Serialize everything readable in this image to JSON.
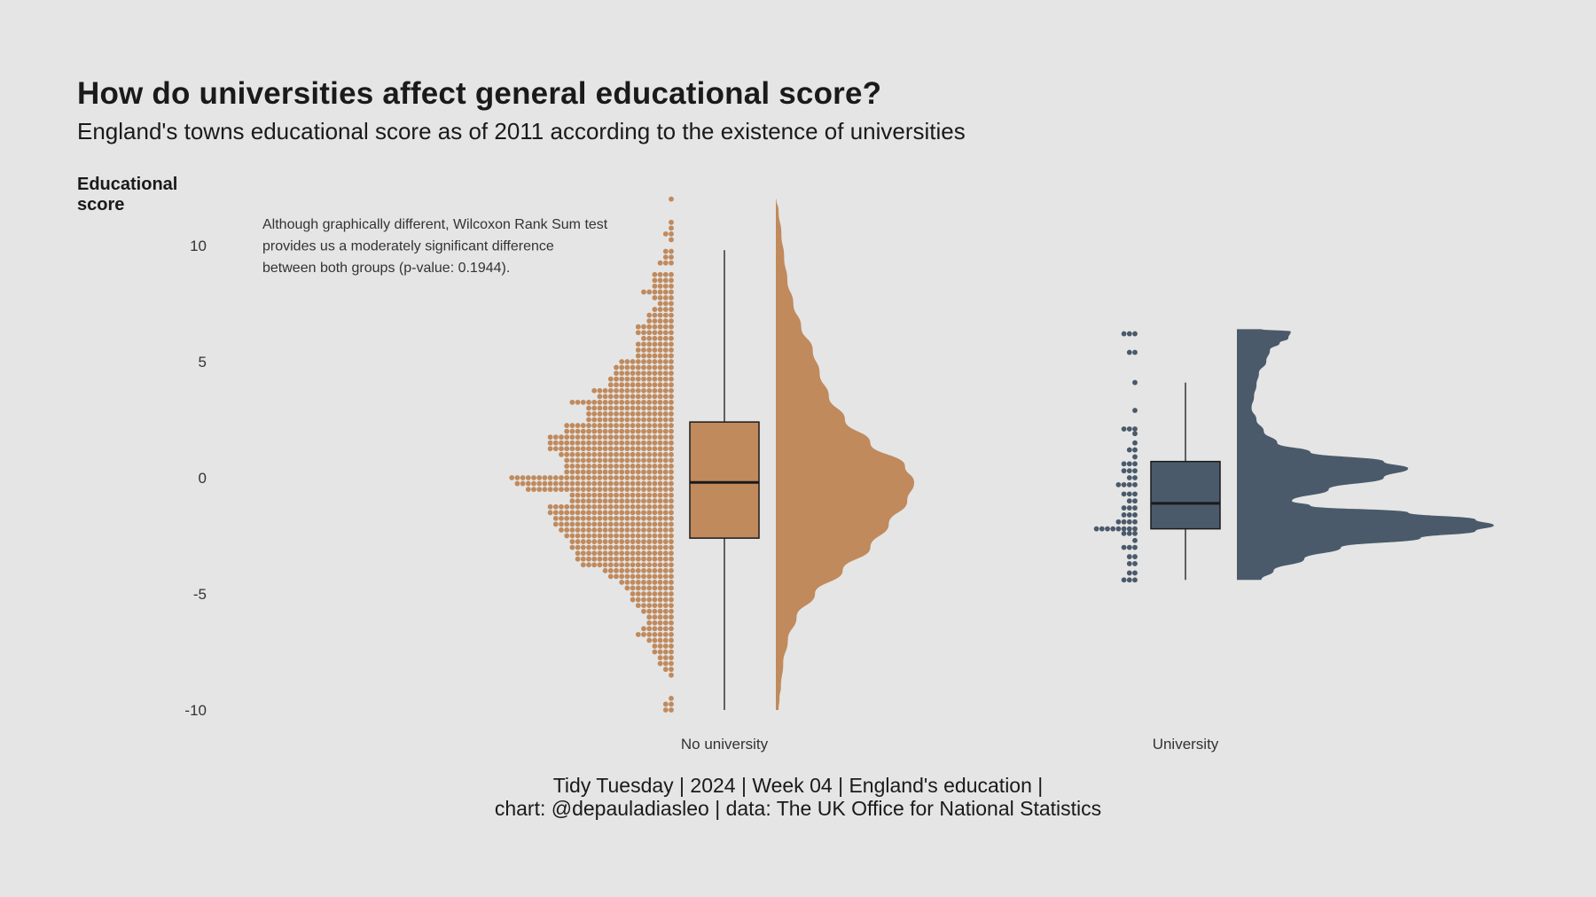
{
  "title": "How do universities affect general educational score?",
  "subtitle": "England's towns educational score as of 2011 according to the existence of universities",
  "caption_line1": "Tidy Tuesday | 2024 | Week 04 | England's education |",
  "caption_line2": "chart: @depauladiasleo | data: The UK Office for National Statistics",
  "chart_data": {
    "type": "raincloud",
    "ylabel": "Educational score",
    "ylim": [
      -10,
      12
    ],
    "yticks": [
      -10,
      -5,
      0,
      5,
      10
    ],
    "grid": false,
    "annotation": [
      "Although graphically different, Wilcoxon Rank Sum test",
      "provides us a moderately significant difference",
      "between both groups (p-value: 0.1944)."
    ],
    "categories": [
      "No university",
      "University"
    ],
    "series": [
      {
        "name": "No university",
        "color": "#c08a5d",
        "box": {
          "whisker_low": -10,
          "q1": -2.6,
          "median": -0.2,
          "q3": 2.4,
          "whisker_high": 9.8
        },
        "density": [
          [
            -10,
            0.6
          ],
          [
            -9.5,
            0.8
          ],
          [
            -9,
            1.1
          ],
          [
            -8,
            1.6
          ],
          [
            -7,
            2.6
          ],
          [
            -6,
            4.5
          ],
          [
            -5,
            8.5
          ],
          [
            -4,
            14.5
          ],
          [
            -3,
            20.5
          ],
          [
            -2,
            24.5
          ],
          [
            -1,
            28.5
          ],
          [
            -0.2,
            30
          ],
          [
            0.5,
            28
          ],
          [
            1.5,
            20.5
          ],
          [
            2.5,
            15
          ],
          [
            3.5,
            11.5
          ],
          [
            4.5,
            9.5
          ],
          [
            5.5,
            8
          ],
          [
            6.5,
            5.5
          ],
          [
            7.5,
            3.8
          ],
          [
            8.5,
            2.5
          ],
          [
            9.5,
            1.8
          ],
          [
            10.5,
            1.2
          ],
          [
            11.5,
            0.6
          ],
          [
            12,
            0.1
          ]
        ],
        "dot_counts": [
          [
            -10,
            2
          ],
          [
            -9.75,
            2
          ],
          [
            -9.5,
            1
          ],
          [
            -9,
            0
          ],
          [
            -8.5,
            1
          ],
          [
            -8.25,
            2
          ],
          [
            -8,
            3
          ],
          [
            -7.75,
            3
          ],
          [
            -7.5,
            4
          ],
          [
            -7.25,
            4
          ],
          [
            -7,
            5
          ],
          [
            -6.75,
            7
          ],
          [
            -6.5,
            6
          ],
          [
            -6.25,
            5
          ],
          [
            -6,
            5
          ],
          [
            -5.75,
            6
          ],
          [
            -5.5,
            7
          ],
          [
            -5.25,
            8
          ],
          [
            -5,
            8
          ],
          [
            -4.75,
            9
          ],
          [
            -4.5,
            10
          ],
          [
            -4.25,
            12
          ],
          [
            -4,
            13
          ],
          [
            -3.75,
            17
          ],
          [
            -3.5,
            18
          ],
          [
            -3.25,
            18
          ],
          [
            -3,
            19
          ],
          [
            -2.75,
            19
          ],
          [
            -2.5,
            20
          ],
          [
            -2.25,
            21
          ],
          [
            -2,
            22
          ],
          [
            -1.75,
            22
          ],
          [
            -1.5,
            23
          ],
          [
            -1.25,
            23
          ],
          [
            -1,
            19
          ],
          [
            -0.75,
            19
          ],
          [
            -0.5,
            27
          ],
          [
            -0.25,
            29
          ],
          [
            0,
            30
          ],
          [
            0.25,
            20
          ],
          [
            0.5,
            20
          ],
          [
            0.75,
            20
          ],
          [
            1,
            21
          ],
          [
            1.25,
            23
          ],
          [
            1.5,
            23
          ],
          [
            1.75,
            23
          ],
          [
            2,
            20
          ],
          [
            2.25,
            20
          ],
          [
            2.5,
            16
          ],
          [
            2.75,
            16
          ],
          [
            3,
            16
          ],
          [
            3.25,
            19
          ],
          [
            3.5,
            14
          ],
          [
            3.75,
            15
          ],
          [
            4,
            12
          ],
          [
            4.25,
            12
          ],
          [
            4.5,
            11
          ],
          [
            4.75,
            11
          ],
          [
            5,
            10
          ],
          [
            5.25,
            7
          ],
          [
            5.5,
            7
          ],
          [
            5.75,
            7
          ],
          [
            6,
            6
          ],
          [
            6.25,
            7
          ],
          [
            6.5,
            7
          ],
          [
            6.75,
            5
          ],
          [
            7,
            5
          ],
          [
            7.25,
            4
          ],
          [
            7.5,
            3
          ],
          [
            7.75,
            4
          ],
          [
            8,
            6
          ],
          [
            8.25,
            4
          ],
          [
            8.5,
            4
          ],
          [
            8.75,
            4
          ],
          [
            9,
            0
          ],
          [
            9.25,
            3
          ],
          [
            9.5,
            2
          ],
          [
            9.75,
            2
          ],
          [
            10,
            0
          ],
          [
            10.25,
            1
          ],
          [
            10.5,
            2
          ],
          [
            10.75,
            1
          ],
          [
            11,
            1
          ],
          [
            11.5,
            0
          ],
          [
            12,
            1
          ]
        ]
      },
      {
        "name": "University",
        "color": "#4a5a6a",
        "box": {
          "whisker_low": -4.4,
          "q1": -2.2,
          "median": -1.1,
          "q3": 0.7,
          "whisker_high": 4.1
        },
        "density": [
          [
            -4.4,
            20
          ],
          [
            -4,
            30
          ],
          [
            -3.5,
            55
          ],
          [
            -3,
            85
          ],
          [
            -2.6,
            150
          ],
          [
            -2.3,
            195
          ],
          [
            -2.05,
            210
          ],
          [
            -1.8,
            195
          ],
          [
            -1.5,
            140
          ],
          [
            -1.2,
            60
          ],
          [
            -1,
            45
          ],
          [
            -0.5,
            75
          ],
          [
            0,
            120
          ],
          [
            0.4,
            140
          ],
          [
            0.7,
            120
          ],
          [
            1.1,
            60
          ],
          [
            1.5,
            33
          ],
          [
            2,
            22
          ],
          [
            2.5,
            16
          ],
          [
            3,
            12
          ],
          [
            3.5,
            14
          ],
          [
            4,
            16
          ],
          [
            4.5,
            18
          ],
          [
            5,
            24
          ],
          [
            5.5,
            27
          ],
          [
            5.8,
            35
          ],
          [
            6,
            42
          ],
          [
            6.3,
            44
          ],
          [
            6.4,
            20
          ]
        ],
        "dot_counts": [
          [
            -4.4,
            3
          ],
          [
            -4.1,
            2
          ],
          [
            -3.7,
            2
          ],
          [
            -3.4,
            2
          ],
          [
            -3,
            3
          ],
          [
            -2.7,
            1
          ],
          [
            -2.4,
            3
          ],
          [
            -2.2,
            8
          ],
          [
            -1.9,
            4
          ],
          [
            -1.6,
            3
          ],
          [
            -1.3,
            3
          ],
          [
            -1,
            2
          ],
          [
            -0.7,
            3
          ],
          [
            -0.3,
            4
          ],
          [
            0,
            2
          ],
          [
            0.3,
            3
          ],
          [
            0.6,
            3
          ],
          [
            0.9,
            1
          ],
          [
            1.2,
            2
          ],
          [
            1.5,
            1
          ],
          [
            1.9,
            1
          ],
          [
            2.1,
            3
          ],
          [
            2.9,
            1
          ],
          [
            4.1,
            1
          ],
          [
            5.4,
            2
          ],
          [
            6.2,
            3
          ]
        ]
      }
    ]
  }
}
